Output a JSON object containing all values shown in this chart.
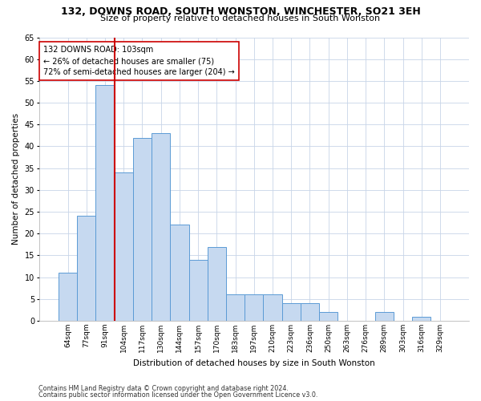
{
  "title": "132, DOWNS ROAD, SOUTH WONSTON, WINCHESTER, SO21 3EH",
  "subtitle": "Size of property relative to detached houses in South Wonston",
  "xlabel": "Distribution of detached houses by size in South Wonston",
  "ylabel": "Number of detached properties",
  "bar_labels": [
    "64sqm",
    "77sqm",
    "91sqm",
    "104sqm",
    "117sqm",
    "130sqm",
    "144sqm",
    "157sqm",
    "170sqm",
    "183sqm",
    "197sqm",
    "210sqm",
    "223sqm",
    "236sqm",
    "250sqm",
    "263sqm",
    "276sqm",
    "289sqm",
    "303sqm",
    "316sqm",
    "329sqm"
  ],
  "bar_values": [
    11,
    24,
    54,
    34,
    42,
    43,
    22,
    14,
    17,
    6,
    6,
    6,
    4,
    4,
    2,
    0,
    0,
    2,
    0,
    1,
    0
  ],
  "bar_color": "#c6d9f0",
  "bar_edge_color": "#5b9bd5",
  "property_line_color": "#cc0000",
  "annotation_line1": "132 DOWNS ROAD: 103sqm",
  "annotation_line2": "← 26% of detached houses are smaller (75)",
  "annotation_line3": "72% of semi-detached houses are larger (204) →",
  "annotation_box_color": "#ffffff",
  "annotation_box_edge": "#cc0000",
  "ylim": [
    0,
    65
  ],
  "yticks": [
    0,
    5,
    10,
    15,
    20,
    25,
    30,
    35,
    40,
    45,
    50,
    55,
    60,
    65
  ],
  "footer1": "Contains HM Land Registry data © Crown copyright and database right 2024.",
  "footer2": "Contains public sector information licensed under the Open Government Licence v3.0.",
  "bg_color": "#ffffff",
  "grid_color": "#c8d4e8",
  "property_line_bar_index": 2,
  "bar_width": 1.0
}
